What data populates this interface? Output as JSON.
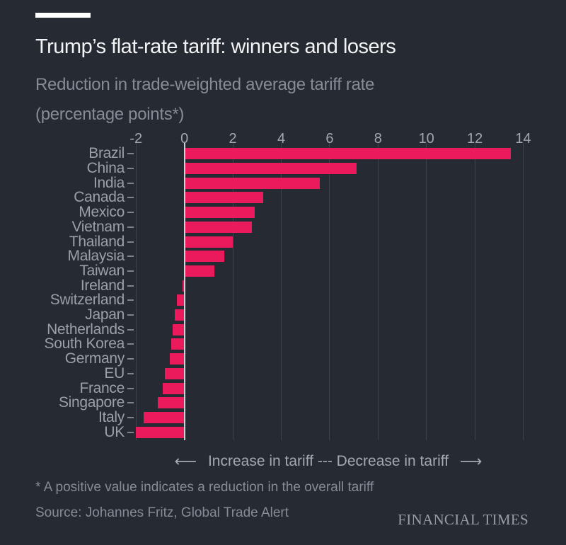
{
  "header": {
    "title": "Trump’s flat-rate tariff: winners and losers",
    "subtitle_line1": "Reduction in trade-weighted average tariff rate",
    "subtitle_line2": "(percentage points*)"
  },
  "chart_data": {
    "type": "bar",
    "orientation": "horizontal",
    "title": "Trump’s flat-rate tariff: winners and losers",
    "subtitle": "Reduction in trade-weighted average tariff rate (percentage points*)",
    "xlabel": "",
    "ylabel": "",
    "categories": [
      "Brazil",
      "China",
      "India",
      "Canada",
      "Mexico",
      "Vietnam",
      "Thailand",
      "Malaysia",
      "Taiwan",
      "Ireland",
      "Switzerland",
      "Japan",
      "Netherlands",
      "South Korea",
      "Germany",
      "EU",
      "France",
      "Singapore",
      "Italy",
      "UK"
    ],
    "values": [
      13.5,
      7.1,
      5.6,
      3.25,
      2.9,
      2.8,
      2.0,
      1.65,
      1.25,
      -0.08,
      -0.3,
      -0.4,
      -0.5,
      -0.55,
      -0.6,
      -0.8,
      -0.9,
      -1.1,
      -1.7,
      -2.0
    ],
    "xticks": [
      -2,
      0,
      2,
      4,
      6,
      8,
      10,
      12,
      14
    ],
    "xlim": [
      -2,
      14.7
    ],
    "grid": true,
    "legend_position": "none",
    "bar_color": "#eb1a5d"
  },
  "direction_legend": {
    "left_arrow": "⟵",
    "increase_label": "Increase in tariff",
    "separator": "---",
    "decrease_label": "Decrease in tariff",
    "right_arrow": "⟶"
  },
  "footer": {
    "footnote": "* A positive value indicates a reduction in the overall tariff",
    "source": "Source: Johannes Fritz, Global Trade Alert",
    "brand": "FINANCIAL TIMES"
  },
  "colors": {
    "background": "#262a33",
    "bar": "#eb1a5d",
    "gridline": "#3e434c",
    "zero_axis": "#ced0d4",
    "title_text": "#f2f3f5",
    "muted_text": "#868c96",
    "label_text": "#9aa0a8"
  }
}
